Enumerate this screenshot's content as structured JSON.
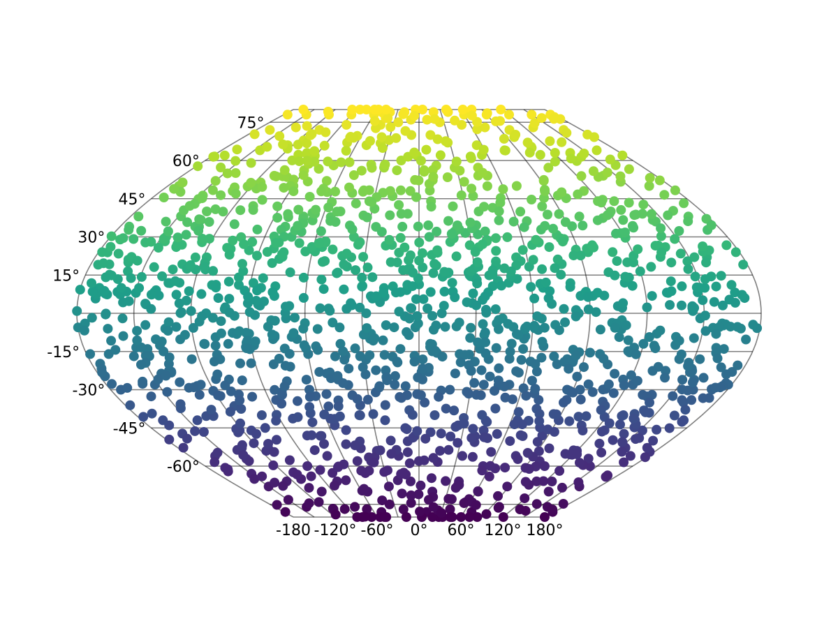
{
  "chart_data": {
    "type": "scatter",
    "projection": "pseudo-cylindrical (flat-polar, Wagner-like)",
    "title": "",
    "xlabel": "",
    "ylabel": "",
    "xlim": [
      -180,
      180
    ],
    "ylim": [
      -80,
      80
    ],
    "grid": true,
    "legend": "none",
    "colormap": "viridis",
    "color_encodes": "latitude",
    "color_stops": [
      "#440154",
      "#482878",
      "#3e4989",
      "#31688e",
      "#26828e",
      "#1f9e89",
      "#35b779",
      "#6ece58",
      "#b5de2b",
      "#fde725"
    ],
    "meridians": [
      -180,
      -150,
      -120,
      -90,
      -60,
      -30,
      0,
      30,
      60,
      90,
      120,
      150,
      180
    ],
    "parallels": [
      -75,
      -60,
      -45,
      -30,
      -15,
      0,
      15,
      30,
      45,
      60,
      75
    ],
    "x_tick_labels": [
      {
        "value": -180,
        "label": "-180"
      },
      {
        "value": -120,
        "label": "-120°"
      },
      {
        "value": -60,
        "label": "-60°"
      },
      {
        "value": 0,
        "label": "0°"
      },
      {
        "value": 60,
        "label": "60°"
      },
      {
        "value": 120,
        "label": "120°"
      },
      {
        "value": 180,
        "label": "180°"
      }
    ],
    "y_tick_labels": [
      {
        "value": 75,
        "label": "75°"
      },
      {
        "value": 60,
        "label": "60°"
      },
      {
        "value": 45,
        "label": "45°"
      },
      {
        "value": 30,
        "label": "30°"
      },
      {
        "value": 15,
        "label": "15°"
      },
      {
        "value": -15,
        "label": "-15°"
      },
      {
        "value": -30,
        "label": "-30°"
      },
      {
        "value": -45,
        "label": "-45°"
      },
      {
        "value": -60,
        "label": "-60°"
      }
    ],
    "point_count": 1600,
    "points": [
      [
        -175,
        78
      ],
      [
        -150,
        78
      ],
      [
        -120,
        78
      ],
      [
        -90,
        78
      ],
      [
        -60,
        78
      ],
      [
        -40,
        79
      ],
      [
        -20,
        79
      ],
      [
        -5,
        80
      ],
      [
        5,
        80
      ],
      [
        20,
        79
      ],
      [
        40,
        79
      ],
      [
        60,
        78
      ],
      [
        90,
        78
      ],
      [
        120,
        78
      ],
      [
        150,
        78
      ],
      [
        175,
        78
      ],
      [
        -165,
        72
      ],
      [
        -140,
        73
      ],
      [
        -110,
        72
      ],
      [
        -85,
        74
      ],
      [
        -45,
        74
      ],
      [
        -25,
        75
      ],
      [
        -10,
        76
      ],
      [
        10,
        76
      ],
      [
        25,
        75
      ],
      [
        50,
        74
      ],
      [
        75,
        73
      ],
      [
        100,
        72
      ],
      [
        130,
        73
      ],
      [
        160,
        72
      ],
      [
        -170,
        62
      ],
      [
        -145,
        64
      ],
      [
        -125,
        66
      ],
      [
        -100,
        63
      ],
      [
        -70,
        67
      ],
      [
        -50,
        66
      ],
      [
        -30,
        68
      ],
      [
        -8,
        70
      ],
      [
        12,
        70
      ],
      [
        28,
        67
      ],
      [
        55,
        66
      ],
      [
        78,
        64
      ],
      [
        105,
        65
      ],
      [
        135,
        63
      ],
      [
        162,
        64
      ],
      [
        178,
        62
      ],
      [
        -172,
        50
      ],
      [
        -150,
        52
      ],
      [
        -130,
        48
      ],
      [
        -110,
        54
      ],
      [
        -90,
        50
      ],
      [
        -68,
        52
      ],
      [
        -45,
        56
      ],
      [
        -28,
        58
      ],
      [
        -15,
        60
      ],
      [
        -2,
        62
      ],
      [
        14,
        58
      ],
      [
        32,
        56
      ],
      [
        52,
        54
      ],
      [
        70,
        50
      ],
      [
        92,
        52
      ],
      [
        115,
        48
      ],
      [
        140,
        54
      ],
      [
        165,
        50
      ],
      [
        -175,
        38
      ],
      [
        -155,
        36
      ],
      [
        -135,
        40
      ],
      [
        -112,
        35
      ],
      [
        -92,
        42
      ],
      [
        -72,
        38
      ],
      [
        -50,
        40
      ],
      [
        -33,
        44
      ],
      [
        -18,
        46
      ],
      [
        -6,
        48
      ],
      [
        8,
        44
      ],
      [
        22,
        42
      ],
      [
        38,
        40
      ],
      [
        58,
        36
      ],
      [
        80,
        42
      ],
      [
        100,
        38
      ],
      [
        122,
        40
      ],
      [
        145,
        36
      ],
      [
        168,
        38
      ],
      [
        -178,
        24
      ],
      [
        -160,
        20
      ],
      [
        -138,
        26
      ],
      [
        -118,
        22
      ],
      [
        -96,
        28
      ],
      [
        -76,
        24
      ],
      [
        -55,
        26
      ],
      [
        -38,
        30
      ],
      [
        -22,
        32
      ],
      [
        -10,
        34
      ],
      [
        6,
        30
      ],
      [
        18,
        28
      ],
      [
        34,
        26
      ],
      [
        54,
        22
      ],
      [
        74,
        26
      ],
      [
        95,
        24
      ],
      [
        118,
        20
      ],
      [
        140,
        26
      ],
      [
        160,
        22
      ],
      [
        178,
        24
      ],
      [
        -170,
        10
      ],
      [
        -150,
        8
      ],
      [
        -128,
        12
      ],
      [
        -106,
        6
      ],
      [
        -84,
        10
      ],
      [
        -62,
        14
      ],
      [
        -44,
        16
      ],
      [
        -28,
        18
      ],
      [
        -12,
        20
      ],
      [
        2,
        18
      ],
      [
        16,
        16
      ],
      [
        30,
        14
      ],
      [
        48,
        12
      ],
      [
        66,
        10
      ],
      [
        88,
        8
      ],
      [
        110,
        12
      ],
      [
        132,
        8
      ],
      [
        152,
        10
      ],
      [
        172,
        6
      ],
      [
        -176,
        -4
      ],
      [
        -156,
        -2
      ],
      [
        -134,
        -6
      ],
      [
        -112,
        0
      ],
      [
        -90,
        -8
      ],
      [
        -70,
        -2
      ],
      [
        -52,
        2
      ],
      [
        -36,
        4
      ],
      [
        -20,
        6
      ],
      [
        -4,
        2
      ],
      [
        12,
        0
      ],
      [
        28,
        4
      ],
      [
        44,
        -2
      ],
      [
        62,
        -6
      ],
      [
        84,
        0
      ],
      [
        104,
        -4
      ],
      [
        126,
        -8
      ],
      [
        148,
        -2
      ],
      [
        170,
        -6
      ],
      [
        -168,
        -16
      ],
      [
        -146,
        -14
      ],
      [
        -124,
        -18
      ],
      [
        -102,
        -12
      ],
      [
        -80,
        -20
      ],
      [
        -60,
        -16
      ],
      [
        -42,
        -12
      ],
      [
        -26,
        -10
      ],
      [
        -10,
        -14
      ],
      [
        6,
        -12
      ],
      [
        22,
        -16
      ],
      [
        38,
        -18
      ],
      [
        56,
        -14
      ],
      [
        76,
        -20
      ],
      [
        98,
        -16
      ],
      [
        120,
        -12
      ],
      [
        142,
        -18
      ],
      [
        164,
        -14
      ],
      [
        -174,
        -30
      ],
      [
        -152,
        -28
      ],
      [
        -130,
        -32
      ],
      [
        -108,
        -26
      ],
      [
        -86,
        -34
      ],
      [
        -64,
        -30
      ],
      [
        -46,
        -26
      ],
      [
        -30,
        -24
      ],
      [
        -14,
        -28
      ],
      [
        2,
        -26
      ],
      [
        18,
        -30
      ],
      [
        34,
        -32
      ],
      [
        52,
        -28
      ],
      [
        72,
        -34
      ],
      [
        94,
        -30
      ],
      [
        116,
        -26
      ],
      [
        138,
        -32
      ],
      [
        160,
        -30
      ],
      [
        178,
        -28
      ],
      [
        -166,
        -44
      ],
      [
        -144,
        -42
      ],
      [
        -122,
        -46
      ],
      [
        -100,
        -40
      ],
      [
        -78,
        -48
      ],
      [
        -56,
        -44
      ],
      [
        -38,
        -40
      ],
      [
        -22,
        -42
      ],
      [
        -6,
        -38
      ],
      [
        10,
        -40
      ],
      [
        26,
        -44
      ],
      [
        44,
        -46
      ],
      [
        64,
        -42
      ],
      [
        86,
        -48
      ],
      [
        108,
        -44
      ],
      [
        130,
        -40
      ],
      [
        152,
        -46
      ],
      [
        172,
        -42
      ],
      [
        -160,
        -56
      ],
      [
        -138,
        -58
      ],
      [
        -116,
        -54
      ],
      [
        -94,
        -60
      ],
      [
        -72,
        -56
      ],
      [
        -50,
        -58
      ],
      [
        -32,
        -54
      ],
      [
        -16,
        -56
      ],
      [
        0,
        -58
      ],
      [
        16,
        -54
      ],
      [
        34,
        -56
      ],
      [
        54,
        -60
      ],
      [
        76,
        -56
      ],
      [
        98,
        -58
      ],
      [
        120,
        -54
      ],
      [
        144,
        -60
      ],
      [
        166,
        -56
      ],
      [
        -150,
        -68
      ],
      [
        -126,
        -66
      ],
      [
        -102,
        -70
      ],
      [
        -78,
        -66
      ],
      [
        -54,
        -70
      ],
      [
        -30,
        -68
      ],
      [
        -8,
        -66
      ],
      [
        14,
        -70
      ],
      [
        38,
        -66
      ],
      [
        62,
        -70
      ],
      [
        88,
        -68
      ],
      [
        112,
        -66
      ],
      [
        136,
        -70
      ],
      [
        160,
        -68
      ],
      [
        -140,
        -76
      ],
      [
        -110,
        -77
      ],
      [
        -80,
        -76
      ],
      [
        -50,
        -78
      ],
      [
        -20,
        -77
      ],
      [
        10,
        -78
      ],
      [
        40,
        -77
      ],
      [
        70,
        -78
      ],
      [
        100,
        -76
      ],
      [
        130,
        -77
      ],
      [
        160,
        -76
      ],
      [
        -178,
        -78
      ],
      [
        178,
        -78
      ]
    ]
  }
}
